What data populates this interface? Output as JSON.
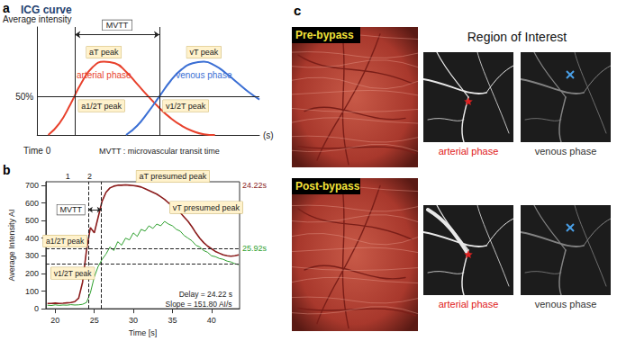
{
  "chart_data": [
    {
      "panel": "a",
      "type": "line",
      "title": "ICG curve",
      "ylabel": "Average intensity",
      "xlabel": "(s)",
      "x": [
        0,
        5,
        10,
        15,
        20,
        25,
        30,
        35,
        40,
        45,
        50,
        55,
        60,
        65,
        70,
        75,
        80,
        85,
        90,
        95,
        100
      ],
      "series": [
        {
          "name": "arterial phase",
          "peak_label": "aT peak",
          "color": "#e8412c",
          "values": [
            null,
            0,
            15,
            40,
            68,
            88,
            95,
            93,
            82,
            66,
            50,
            35,
            22,
            12,
            5,
            1,
            0,
            null,
            null,
            null,
            null
          ]
        },
        {
          "name": "venous phase",
          "peak_label": "vT peak",
          "color": "#3b6fd4",
          "values": [
            null,
            null,
            null,
            null,
            null,
            null,
            null,
            null,
            0,
            12,
            30,
            50,
            70,
            85,
            93,
            95,
            90,
            80,
            68,
            56,
            46
          ]
        }
      ],
      "xlim": [
        0,
        100
      ],
      "ylim": [
        0,
        140
      ],
      "tick_labels": false,
      "grid": false,
      "level_line": {
        "y": 50,
        "label": "50%"
      },
      "reference_lines": [
        {
          "x": 17,
          "label": "a1/2T peak"
        },
        {
          "x": 55,
          "label": "v1/2T peak"
        }
      ],
      "span": {
        "from": 17,
        "to": 55,
        "label": "MVTT"
      },
      "annotations": [
        "Time 0",
        "MVTT : microvascular transit time"
      ]
    },
    {
      "panel": "b",
      "type": "line",
      "xlabel": "Time [s]",
      "ylabel": "Average Intensity AI",
      "x": [
        19,
        19.5,
        20,
        20.5,
        21,
        21.5,
        22,
        22.5,
        23,
        23.5,
        24,
        24.5,
        25,
        25.5,
        26,
        26.5,
        27,
        27.5,
        28,
        28.5,
        29,
        29.5,
        30,
        30.5,
        31,
        31.5,
        32,
        32.5,
        33,
        33.5,
        34,
        34.5,
        35,
        35.5,
        36,
        36.5,
        37,
        37.5,
        38,
        38.5,
        39,
        39.5,
        40,
        40.5,
        41,
        41.5,
        42,
        42.5,
        43,
        43.5
      ],
      "series": [
        {
          "peak_label": "aT presumed peak",
          "color": "#8b1c1c",
          "values": [
            30,
            30,
            32,
            30,
            31,
            33,
            35,
            40,
            60,
            150,
            330,
            460,
            430,
            520,
            610,
            660,
            685,
            695,
            700,
            700,
            702,
            700,
            698,
            695,
            690,
            680,
            670,
            660,
            650,
            635,
            620,
            600,
            585,
            565,
            545,
            520,
            495,
            465,
            430,
            400,
            375,
            355,
            340,
            325,
            315,
            305,
            300,
            298,
            300,
            305
          ]
        },
        {
          "peak_label": "vT presumed peak",
          "color": "#2ea02e",
          "values": [
            20,
            18,
            22,
            19,
            21,
            20,
            23,
            21,
            22,
            25,
            35,
            90,
            180,
            240,
            280,
            310,
            350,
            330,
            380,
            360,
            400,
            390,
            430,
            410,
            450,
            440,
            470,
            455,
            480,
            470,
            495,
            480,
            470,
            450,
            440,
            415,
            400,
            385,
            360,
            350,
            330,
            320,
            300,
            295,
            285,
            280,
            270,
            265,
            255,
            250
          ]
        }
      ],
      "xlim": [
        18.8,
        43.6
      ],
      "xticks": [
        20,
        25,
        30,
        35,
        40
      ],
      "ylim": [
        0,
        720
      ],
      "yticks": [
        0,
        100,
        200,
        300,
        400,
        500,
        600,
        700
      ],
      "grid": false,
      "reference_points": [
        {
          "x": 24.22,
          "y": 340,
          "label": "a1/2T peak"
        },
        {
          "x": 25.92,
          "y": 255,
          "label": "v1/2T peak"
        }
      ],
      "span": {
        "from": 24.22,
        "to": 25.92,
        "label": "MVTT"
      },
      "side_labels": [
        {
          "y": 700,
          "label": "24.22s",
          "color": "#8b1c1c"
        },
        {
          "y": 340,
          "label": "25.92s",
          "color": "#2ea02e"
        }
      ],
      "top_marks": [
        {
          "x": 21.6,
          "label": "1"
        },
        {
          "x": 24.4,
          "label": "2"
        }
      ],
      "annotations": [
        "Delay = 24.22 s",
        "Slope = 151.80 AI/s"
      ]
    }
  ],
  "panel_c": {
    "panel": "c",
    "header": "Region of Interest",
    "rows": [
      {
        "label": "Pre-bypass"
      },
      {
        "label": "Post-bypass"
      }
    ],
    "phases": [
      {
        "label": "arterial phase",
        "color": "#e02020"
      },
      {
        "label": "venous phase",
        "color": "#333333"
      }
    ]
  }
}
